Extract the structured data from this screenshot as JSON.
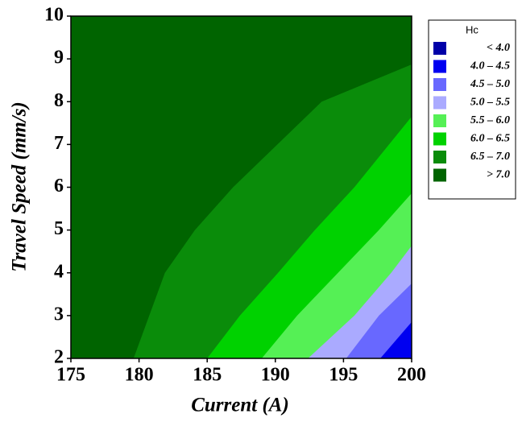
{
  "chart_data": {
    "type": "contour",
    "xlabel": "Current (A)",
    "ylabel": "Travel Speed (mm/s)",
    "xlim": [
      175,
      200
    ],
    "ylim": [
      2,
      10
    ],
    "xticks": [
      175,
      180,
      185,
      190,
      195,
      200
    ],
    "yticks": [
      2,
      3,
      4,
      5,
      6,
      7,
      8,
      9,
      10
    ],
    "legend_title": "Hc",
    "series": [
      {
        "name": "< 4.0",
        "color": "#0000a8",
        "x": [],
        "y": []
      },
      {
        "name": "4.0 – 4.5",
        "color": "#0000f0",
        "x": [
          197.7,
          200
        ],
        "y": [
          2,
          2.85
        ]
      },
      {
        "name": "4.5 – 5.0",
        "color": "#6868ff",
        "x": [
          195.2,
          197.6,
          200
        ],
        "y": [
          2,
          3,
          3.75
        ]
      },
      {
        "name": "5.0 – 5.5",
        "color": "#aaaaff",
        "x": [
          192.4,
          195.8,
          198.5,
          200
        ],
        "y": [
          2,
          3,
          4,
          4.63
        ]
      },
      {
        "name": "5.5 – 6.0",
        "color": "#55f055",
        "x": [
          189,
          191.6,
          194.6,
          197.6,
          200
        ],
        "y": [
          2,
          3,
          4,
          5,
          5.86
        ]
      },
      {
        "name": "6.0 – 6.5",
        "color": "#00d200",
        "x": [
          185,
          187.4,
          190.2,
          192.9,
          195.8,
          200
        ],
        "y": [
          2,
          3,
          4,
          5,
          6,
          7.65
        ]
      },
      {
        "name": "6.5 – 7.0",
        "color": "#0a8c0a",
        "x": [
          179.6,
          181.9,
          184.1,
          186.9,
          193.4,
          200
        ],
        "y": [
          2,
          4,
          5,
          6,
          8,
          8.87
        ]
      },
      {
        "name": "> 7.0",
        "color": "#006400",
        "x": [],
        "y": []
      }
    ]
  }
}
